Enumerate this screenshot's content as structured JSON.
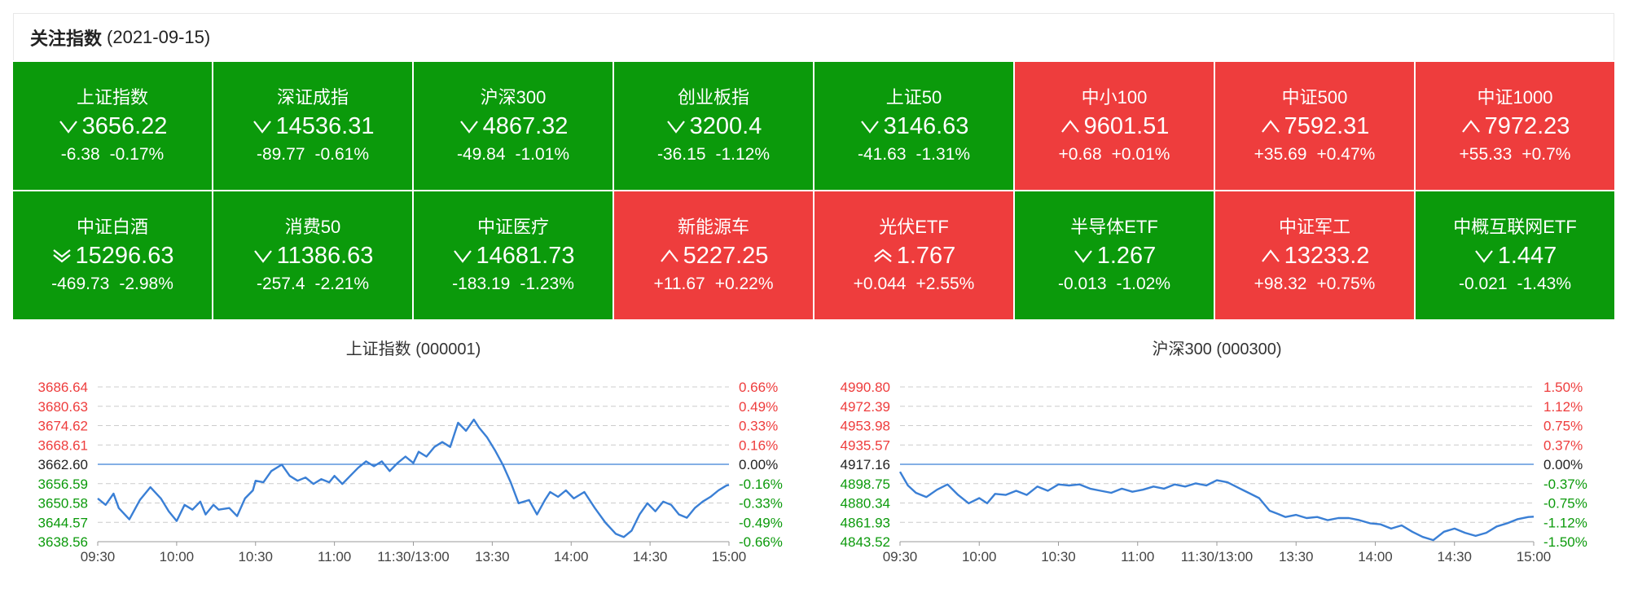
{
  "header": {
    "title": "关注指数",
    "date": "(2021-09-15)"
  },
  "colors": {
    "up": "#ee3d3d",
    "down": "#0b9a0b",
    "line": "#3a7fd5",
    "grid": "#cccccc"
  },
  "cards": [
    {
      "name": "上证指数",
      "dir": "down",
      "arrow": "single",
      "price": "3656.22",
      "change": "-6.38",
      "pct": "-0.17%"
    },
    {
      "name": "深证成指",
      "dir": "down",
      "arrow": "single",
      "price": "14536.31",
      "change": "-89.77",
      "pct": "-0.61%"
    },
    {
      "name": "沪深300",
      "dir": "down",
      "arrow": "single",
      "price": "4867.32",
      "change": "-49.84",
      "pct": "-1.01%"
    },
    {
      "name": "创业板指",
      "dir": "down",
      "arrow": "single",
      "price": "3200.4",
      "change": "-36.15",
      "pct": "-1.12%"
    },
    {
      "name": "上证50",
      "dir": "down",
      "arrow": "single",
      "price": "3146.63",
      "change": "-41.63",
      "pct": "-1.31%"
    },
    {
      "name": "中小100",
      "dir": "up",
      "arrow": "single",
      "price": "9601.51",
      "change": "+0.68",
      "pct": "+0.01%"
    },
    {
      "name": "中证500",
      "dir": "up",
      "arrow": "single",
      "price": "7592.31",
      "change": "+35.69",
      "pct": "+0.47%"
    },
    {
      "name": "中证1000",
      "dir": "up",
      "arrow": "single",
      "price": "7972.23",
      "change": "+55.33",
      "pct": "+0.7%"
    },
    {
      "name": "中证白酒",
      "dir": "down",
      "arrow": "double",
      "price": "15296.63",
      "change": "-469.73",
      "pct": "-2.98%"
    },
    {
      "name": "消费50",
      "dir": "down",
      "arrow": "single",
      "price": "11386.63",
      "change": "-257.4",
      "pct": "-2.21%"
    },
    {
      "name": "中证医疗",
      "dir": "down",
      "arrow": "single",
      "price": "14681.73",
      "change": "-183.19",
      "pct": "-1.23%"
    },
    {
      "name": "新能源车",
      "dir": "up",
      "arrow": "single",
      "price": "5227.25",
      "change": "+11.67",
      "pct": "+0.22%"
    },
    {
      "name": "光伏ETF",
      "dir": "up",
      "arrow": "double",
      "price": "1.767",
      "change": "+0.044",
      "pct": "+2.55%"
    },
    {
      "name": "半导体ETF",
      "dir": "down",
      "arrow": "single",
      "price": "1.267",
      "change": "-0.013",
      "pct": "-1.02%"
    },
    {
      "name": "中证军工",
      "dir": "up",
      "arrow": "single",
      "price": "13233.2",
      "change": "+98.32",
      "pct": "+0.75%"
    },
    {
      "name": "中概互联网ETF",
      "dir": "down",
      "arrow": "single",
      "price": "1.447",
      "change": "-0.021",
      "pct": "-1.43%"
    }
  ],
  "chart_data": [
    {
      "type": "line",
      "title": "上证指数 (000001)",
      "x_ticks": [
        "09:30",
        "10:00",
        "10:30",
        "11:00",
        "11:30/13:00",
        "13:30",
        "14:00",
        "14:30",
        "15:00"
      ],
      "y_left": [
        "3686.64",
        "3680.63",
        "3674.62",
        "3668.61",
        "3662.60",
        "3656.59",
        "3650.58",
        "3644.57",
        "3638.56"
      ],
      "y_right": [
        "0.66%",
        "0.49%",
        "0.33%",
        "0.16%",
        "0.00%",
        "-0.16%",
        "-0.33%",
        "-0.49%",
        "-0.66%"
      ],
      "ylim": [
        3638.56,
        3686.64
      ],
      "base": 3662.6,
      "series": {
        "x": [
          0,
          3,
          6,
          8,
          12,
          16,
          20,
          24,
          27,
          30,
          33,
          36,
          39,
          41,
          44,
          46,
          50,
          53,
          56,
          59,
          60,
          63,
          66,
          70,
          73,
          76,
          79,
          82,
          85,
          88,
          90,
          93,
          96,
          99,
          102,
          105,
          108,
          111,
          114,
          117,
          120,
          122,
          125,
          128,
          131,
          134,
          137,
          140,
          143,
          145,
          148,
          151,
          154,
          157,
          160,
          164,
          167,
          170,
          172,
          175,
          178,
          181,
          185,
          189,
          193,
          197,
          200,
          203,
          206,
          209,
          212,
          215,
          218,
          221,
          224,
          227,
          230,
          233,
          236,
          239,
          240
        ],
        "y": [
          3652.0,
          3650.0,
          3653.5,
          3649.0,
          3645.5,
          3651.5,
          3655.5,
          3652.0,
          3648.0,
          3645.0,
          3650.0,
          3648.5,
          3651.0,
          3647.0,
          3650.0,
          3648.5,
          3649.0,
          3646.5,
          3652.0,
          3654.5,
          3657.5,
          3657.0,
          3660.5,
          3662.5,
          3659.0,
          3657.5,
          3658.5,
          3656.5,
          3658.0,
          3657.0,
          3659.0,
          3656.5,
          3659.0,
          3661.5,
          3663.5,
          3662.0,
          3663.5,
          3660.5,
          3663.0,
          3665.0,
          3663.0,
          3666.5,
          3665.0,
          3668.0,
          3669.5,
          3668.0,
          3675.5,
          3673.0,
          3676.5,
          3674.0,
          3671.0,
          3667.0,
          3662.5,
          3657.0,
          3650.5,
          3651.5,
          3647.0,
          3651.5,
          3654.0,
          3652.5,
          3654.5,
          3652.0,
          3654.0,
          3649.0,
          3644.5,
          3641.0,
          3640.0,
          3642.0,
          3647.0,
          3650.5,
          3648.0,
          3651.0,
          3650.0,
          3647.0,
          3646.0,
          3649.0,
          3651.0,
          3652.5,
          3654.5,
          3656.0,
          3656.2
        ]
      }
    },
    {
      "type": "line",
      "title": "沪深300 (000300)",
      "x_ticks": [
        "09:30",
        "10:00",
        "10:30",
        "11:00",
        "11:30/13:00",
        "13:30",
        "14:00",
        "14:30",
        "15:00"
      ],
      "y_left": [
        "4990.80",
        "4972.39",
        "4953.98",
        "4935.57",
        "4917.16",
        "4898.75",
        "4880.34",
        "4861.93",
        "4843.52"
      ],
      "y_right": [
        "1.50%",
        "1.12%",
        "0.75%",
        "0.37%",
        "0.00%",
        "-0.37%",
        "-0.75%",
        "-1.12%",
        "-1.50%"
      ],
      "ylim": [
        4843.52,
        4990.8
      ],
      "base": 4917.16,
      "series": {
        "x": [
          0,
          3,
          6,
          10,
          14,
          18,
          22,
          26,
          30,
          33,
          36,
          40,
          44,
          48,
          52,
          56,
          60,
          64,
          68,
          72,
          76,
          80,
          84,
          88,
          92,
          96,
          100,
          104,
          108,
          112,
          116,
          120,
          124,
          128,
          132,
          136,
          140,
          143,
          146,
          150,
          154,
          158,
          162,
          166,
          170,
          174,
          178,
          182,
          186,
          190,
          194,
          198,
          202,
          206,
          210,
          214,
          218,
          222,
          226,
          230,
          234,
          238,
          240
        ],
        "y": [
          4910.0,
          4897.0,
          4890.0,
          4886.0,
          4893.0,
          4898.0,
          4888.0,
          4880.0,
          4885.0,
          4880.0,
          4889.0,
          4888.0,
          4892.0,
          4888.0,
          4896.0,
          4892.0,
          4898.0,
          4897.0,
          4898.0,
          4894.0,
          4892.0,
          4890.0,
          4894.0,
          4891.0,
          4893.0,
          4896.0,
          4894.0,
          4898.0,
          4896.0,
          4899.0,
          4897.0,
          4902.0,
          4900.0,
          4895.0,
          4890.0,
          4885.0,
          4873.0,
          4870.0,
          4867.0,
          4869.0,
          4866.0,
          4867.0,
          4864.0,
          4866.0,
          4866.0,
          4864.0,
          4861.0,
          4860.0,
          4856.0,
          4859.0,
          4853.0,
          4848.0,
          4845.0,
          4853.0,
          4856.0,
          4852.0,
          4849.0,
          4852.0,
          4858.0,
          4861.0,
          4865.0,
          4867.0,
          4867.32
        ]
      }
    }
  ]
}
